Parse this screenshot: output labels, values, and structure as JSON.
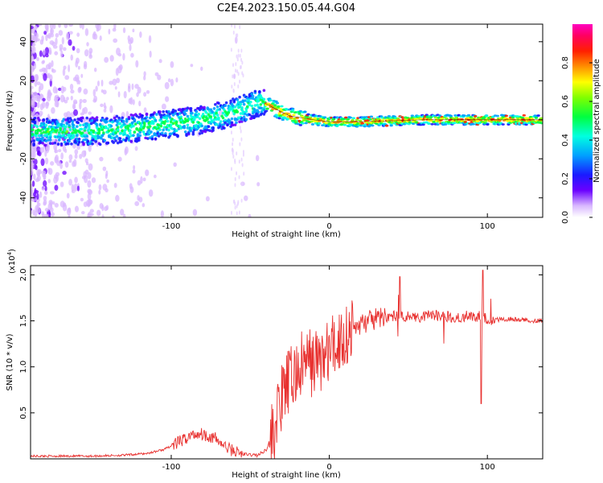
{
  "title": "C2E4.2023.150.05.44.G04",
  "colors": {
    "snr_line": "#e8312f",
    "frame": "#000000"
  },
  "chart_data": [
    {
      "type": "heatmap",
      "title": "C2E4.2023.150.05.44.G04",
      "xlabel": "Height of straight line (km)",
      "ylabel": "Frequency (Hz)",
      "xlim": [
        -189,
        135
      ],
      "ylim": [
        -50,
        49
      ],
      "xticks": [
        -100,
        0,
        100
      ],
      "yticks": [
        -40,
        -20,
        0,
        20,
        40
      ],
      "ridge": {
        "description_points_x": [
          -189,
          -150,
          -120,
          -100,
          -80,
          -60,
          -48,
          -42,
          -35,
          -25,
          -10,
          0,
          20,
          60,
          100,
          135
        ],
        "description_points_y": [
          -6,
          -6,
          -4,
          -2,
          0,
          4,
          8,
          9,
          6,
          2,
          0,
          -1,
          -1,
          0,
          0,
          0
        ]
      },
      "colorbar": {
        "label": "Normalized spectral amplitude",
        "range": [
          0.0,
          1.0
        ],
        "ticks": [
          "0.0",
          "0.2",
          "0.4",
          "0.6",
          "0.8"
        ]
      }
    },
    {
      "type": "line",
      "xlabel": "Height of straight line (km)",
      "ylabel": "SNR (10 * v/v)",
      "scale_note": "(x10",
      "scale_exp": "4",
      "scale_close": ")",
      "xlim": [
        -189,
        135
      ],
      "ylim": [
        0,
        2.1
      ],
      "xticks": [
        -100,
        0,
        100
      ],
      "yticks": [
        "0.5",
        "1.0",
        "1.5",
        "2.0"
      ],
      "series": [
        {
          "name": "SNR",
          "x": [
            -189,
            -170,
            -150,
            -130,
            -115,
            -105,
            -95,
            -88,
            -82,
            -78,
            -72,
            -65,
            -55,
            -45,
            -40,
            -35,
            -32,
            -28,
            -25,
            -22,
            -18,
            -14,
            -10,
            -6,
            -2,
            2,
            6,
            10,
            14,
            18,
            22,
            26,
            30,
            34,
            38,
            42,
            46,
            50,
            55,
            60,
            65,
            70,
            75,
            80,
            85,
            90,
            94,
            96,
            98,
            100,
            105,
            110,
            115,
            120,
            125,
            130,
            135
          ],
          "y": [
            0.03,
            0.03,
            0.03,
            0.04,
            0.06,
            0.1,
            0.18,
            0.25,
            0.28,
            0.26,
            0.22,
            0.12,
            0.05,
            0.04,
            0.1,
            0.3,
            0.55,
            0.75,
            0.85,
            0.9,
            1.0,
            1.05,
            1.05,
            1.08,
            1.12,
            1.2,
            1.28,
            1.35,
            1.4,
            1.45,
            1.48,
            1.5,
            1.52,
            1.54,
            1.55,
            1.55,
            1.56,
            1.55,
            1.54,
            1.55,
            1.56,
            1.55,
            1.55,
            1.54,
            1.55,
            1.56,
            1.55,
            1.55,
            1.53,
            1.52,
            1.51,
            1.52,
            1.52,
            1.51,
            1.51,
            1.5,
            1.5
          ]
        }
      ]
    }
  ]
}
